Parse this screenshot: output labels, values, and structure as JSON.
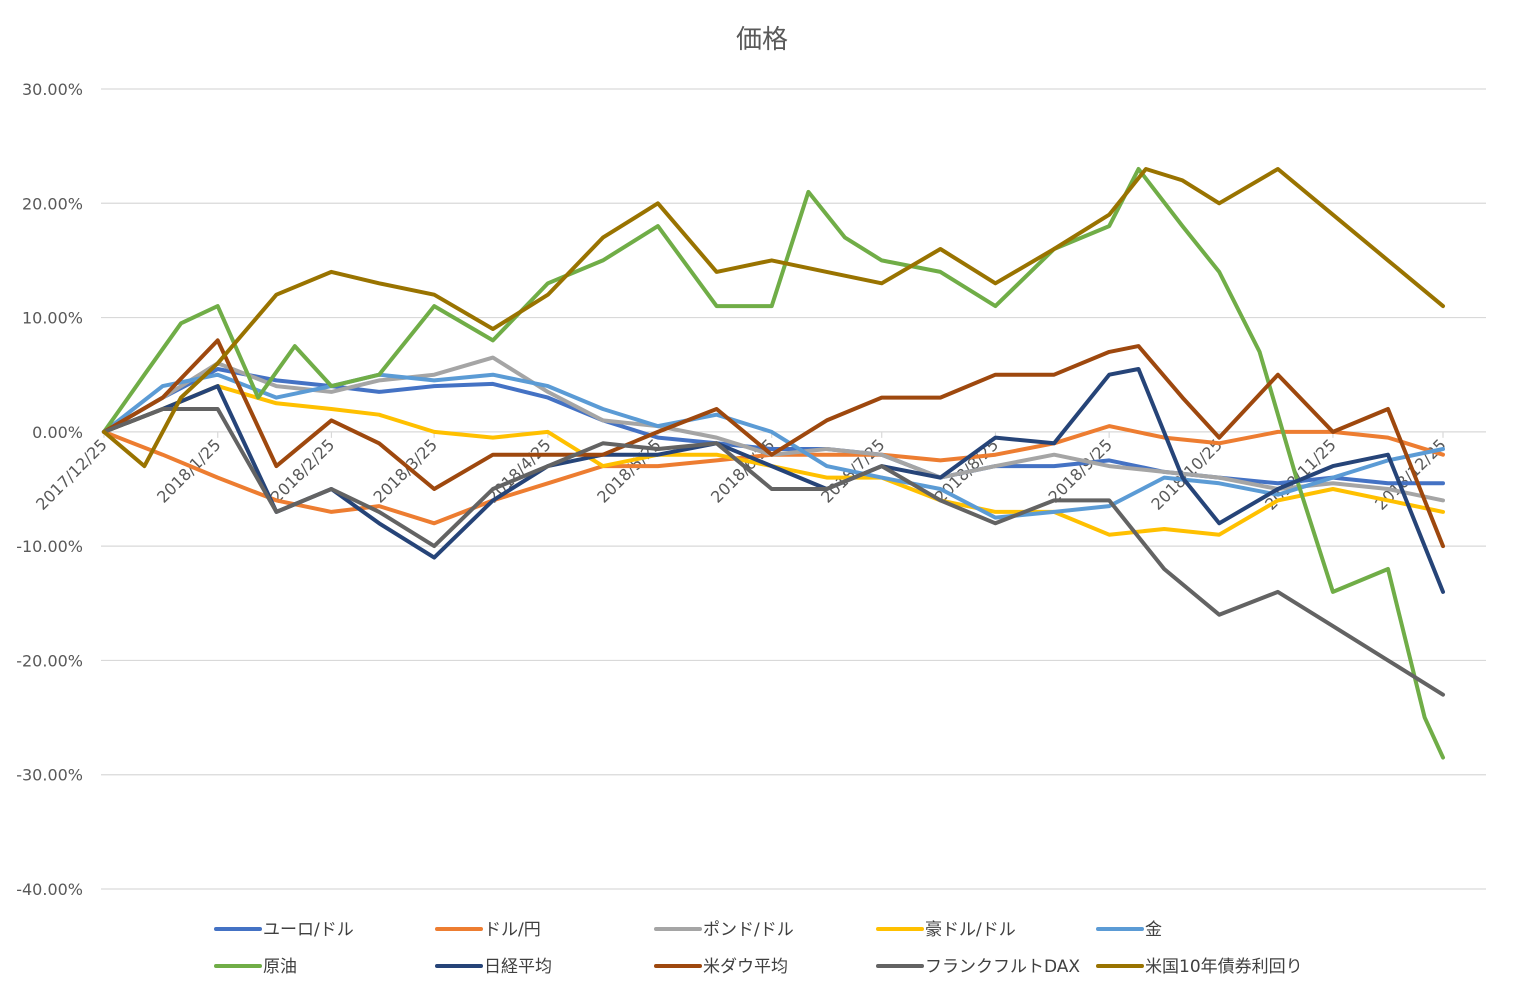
{
  "chart_data": {
    "type": "line",
    "title": "価格",
    "xlabel": "",
    "ylabel": "",
    "ylim": [
      -0.4,
      0.3
    ],
    "y_ticks": [
      0.3,
      0.2,
      0.1,
      0.0,
      -0.1,
      -0.2,
      -0.3,
      -0.4
    ],
    "y_tick_labels": [
      "30.00%",
      "20.00%",
      "10.00%",
      "0.00%",
      "-10.00%",
      "-20.00%",
      "-30.00%",
      "-40.00%"
    ],
    "x_range": [
      "2017/12/25",
      "2018/12/25"
    ],
    "x_ticks": [
      "2017/12/25",
      "2018/1/25",
      "2018/2/25",
      "2018/3/25",
      "2018/4/25",
      "2018/5/25",
      "2018/6/25",
      "2018/7/25",
      "2018/8/25",
      "2018/9/25",
      "2018/10/25",
      "2018/11/25",
      "2018/12/25"
    ],
    "grid": true,
    "legend_position": "bottom",
    "series": [
      {
        "name": "ユーロ/ドル",
        "color": "#4472C4",
        "points": [
          [
            "2017/12/25",
            0.0
          ],
          [
            "2018/1/10",
            0.03
          ],
          [
            "2018/1/25",
            0.055
          ],
          [
            "2018/2/10",
            0.045
          ],
          [
            "2018/2/25",
            0.04
          ],
          [
            "2018/3/10",
            0.035
          ],
          [
            "2018/3/25",
            0.04
          ],
          [
            "2018/4/10",
            0.042
          ],
          [
            "2018/4/25",
            0.03
          ],
          [
            "2018/5/10",
            0.01
          ],
          [
            "2018/5/25",
            -0.005
          ],
          [
            "2018/6/10",
            -0.01
          ],
          [
            "2018/6/25",
            -0.015
          ],
          [
            "2018/7/10",
            -0.015
          ],
          [
            "2018/7/25",
            -0.02
          ],
          [
            "2018/8/10",
            -0.04
          ],
          [
            "2018/8/25",
            -0.03
          ],
          [
            "2018/9/10",
            -0.03
          ],
          [
            "2018/9/25",
            -0.025
          ],
          [
            "2018/10/10",
            -0.035
          ],
          [
            "2018/10/25",
            -0.04
          ],
          [
            "2018/11/10",
            -0.045
          ],
          [
            "2018/11/25",
            -0.04
          ],
          [
            "2018/12/10",
            -0.045
          ],
          [
            "2018/12/25",
            -0.045
          ]
        ]
      },
      {
        "name": "ドル/円",
        "color": "#ED7D31",
        "points": [
          [
            "2017/12/25",
            0.0
          ],
          [
            "2018/1/10",
            -0.02
          ],
          [
            "2018/1/25",
            -0.04
          ],
          [
            "2018/2/10",
            -0.06
          ],
          [
            "2018/2/25",
            -0.07
          ],
          [
            "2018/3/10",
            -0.065
          ],
          [
            "2018/3/25",
            -0.08
          ],
          [
            "2018/4/10",
            -0.06
          ],
          [
            "2018/4/25",
            -0.045
          ],
          [
            "2018/5/10",
            -0.03
          ],
          [
            "2018/5/25",
            -0.03
          ],
          [
            "2018/6/10",
            -0.025
          ],
          [
            "2018/6/25",
            -0.02
          ],
          [
            "2018/7/10",
            -0.02
          ],
          [
            "2018/7/25",
            -0.02
          ],
          [
            "2018/8/10",
            -0.025
          ],
          [
            "2018/8/25",
            -0.02
          ],
          [
            "2018/9/10",
            -0.01
          ],
          [
            "2018/9/25",
            0.005
          ],
          [
            "2018/10/10",
            -0.005
          ],
          [
            "2018/10/25",
            -0.01
          ],
          [
            "2018/11/10",
            0.0
          ],
          [
            "2018/11/25",
            0.0
          ],
          [
            "2018/12/10",
            -0.005
          ],
          [
            "2018/12/25",
            -0.02
          ]
        ]
      },
      {
        "name": "ポンド/ドル",
        "color": "#A5A5A5",
        "points": [
          [
            "2017/12/25",
            0.0
          ],
          [
            "2018/1/10",
            0.03
          ],
          [
            "2018/1/25",
            0.06
          ],
          [
            "2018/2/10",
            0.04
          ],
          [
            "2018/2/25",
            0.035
          ],
          [
            "2018/3/10",
            0.045
          ],
          [
            "2018/3/25",
            0.05
          ],
          [
            "2018/4/10",
            0.065
          ],
          [
            "2018/4/25",
            0.035
          ],
          [
            "2018/5/10",
            0.01
          ],
          [
            "2018/5/25",
            0.005
          ],
          [
            "2018/6/10",
            -0.005
          ],
          [
            "2018/6/25",
            -0.02
          ],
          [
            "2018/7/10",
            -0.015
          ],
          [
            "2018/7/25",
            -0.02
          ],
          [
            "2018/8/10",
            -0.04
          ],
          [
            "2018/8/25",
            -0.03
          ],
          [
            "2018/9/10",
            -0.02
          ],
          [
            "2018/9/25",
            -0.03
          ],
          [
            "2018/10/10",
            -0.035
          ],
          [
            "2018/10/25",
            -0.04
          ],
          [
            "2018/11/10",
            -0.05
          ],
          [
            "2018/11/25",
            -0.045
          ],
          [
            "2018/12/10",
            -0.05
          ],
          [
            "2018/12/25",
            -0.06
          ]
        ]
      },
      {
        "name": "豪ドル/ドル",
        "color": "#FFC000",
        "points": [
          [
            "2017/12/25",
            0.0
          ],
          [
            "2018/1/10",
            0.02
          ],
          [
            "2018/1/25",
            0.04
          ],
          [
            "2018/2/10",
            0.025
          ],
          [
            "2018/2/25",
            0.02
          ],
          [
            "2018/3/10",
            0.015
          ],
          [
            "2018/3/25",
            0.0
          ],
          [
            "2018/4/10",
            -0.005
          ],
          [
            "2018/4/25",
            0.0
          ],
          [
            "2018/5/10",
            -0.03
          ],
          [
            "2018/5/25",
            -0.02
          ],
          [
            "2018/6/10",
            -0.02
          ],
          [
            "2018/6/25",
            -0.03
          ],
          [
            "2018/7/10",
            -0.04
          ],
          [
            "2018/7/25",
            -0.04
          ],
          [
            "2018/8/10",
            -0.06
          ],
          [
            "2018/8/25",
            -0.07
          ],
          [
            "2018/9/10",
            -0.07
          ],
          [
            "2018/9/25",
            -0.09
          ],
          [
            "2018/10/10",
            -0.085
          ],
          [
            "2018/10/25",
            -0.09
          ],
          [
            "2018/11/10",
            -0.06
          ],
          [
            "2018/11/25",
            -0.05
          ],
          [
            "2018/12/10",
            -0.06
          ],
          [
            "2018/12/25",
            -0.07
          ]
        ]
      },
      {
        "name": "金",
        "color": "#5B9BD5",
        "points": [
          [
            "2017/12/25",
            0.0
          ],
          [
            "2018/1/10",
            0.04
          ],
          [
            "2018/1/25",
            0.05
          ],
          [
            "2018/2/10",
            0.03
          ],
          [
            "2018/2/25",
            0.04
          ],
          [
            "2018/3/10",
            0.05
          ],
          [
            "2018/3/25",
            0.045
          ],
          [
            "2018/4/10",
            0.05
          ],
          [
            "2018/4/25",
            0.04
          ],
          [
            "2018/5/10",
            0.02
          ],
          [
            "2018/5/25",
            0.005
          ],
          [
            "2018/6/10",
            0.015
          ],
          [
            "2018/6/25",
            0.0
          ],
          [
            "2018/7/10",
            -0.03
          ],
          [
            "2018/7/25",
            -0.04
          ],
          [
            "2018/8/10",
            -0.05
          ],
          [
            "2018/8/25",
            -0.075
          ],
          [
            "2018/9/10",
            -0.07
          ],
          [
            "2018/9/25",
            -0.065
          ],
          [
            "2018/10/10",
            -0.04
          ],
          [
            "2018/10/25",
            -0.045
          ],
          [
            "2018/11/10",
            -0.055
          ],
          [
            "2018/11/25",
            -0.04
          ],
          [
            "2018/12/10",
            -0.025
          ],
          [
            "2018/12/25",
            -0.015
          ]
        ]
      },
      {
        "name": "原油",
        "color": "#70AD47",
        "points": [
          [
            "2017/12/25",
            0.0
          ],
          [
            "2018/1/5",
            0.05
          ],
          [
            "2018/1/15",
            0.095
          ],
          [
            "2018/1/25",
            0.11
          ],
          [
            "2018/2/5",
            0.03
          ],
          [
            "2018/2/15",
            0.075
          ],
          [
            "2018/2/25",
            0.04
          ],
          [
            "2018/3/10",
            0.05
          ],
          [
            "2018/3/25",
            0.11
          ],
          [
            "2018/4/10",
            0.08
          ],
          [
            "2018/4/25",
            0.13
          ],
          [
            "2018/5/10",
            0.15
          ],
          [
            "2018/5/25",
            0.18
          ],
          [
            "2018/6/10",
            0.11
          ],
          [
            "2018/6/25",
            0.11
          ],
          [
            "2018/7/5",
            0.21
          ],
          [
            "2018/7/15",
            0.17
          ],
          [
            "2018/7/25",
            0.15
          ],
          [
            "2018/8/10",
            0.14
          ],
          [
            "2018/8/25",
            0.11
          ],
          [
            "2018/9/10",
            0.16
          ],
          [
            "2018/9/25",
            0.18
          ],
          [
            "2018/10/3",
            0.23
          ],
          [
            "2018/10/15",
            0.18
          ],
          [
            "2018/10/25",
            0.14
          ],
          [
            "2018/11/5",
            0.07
          ],
          [
            "2018/11/15",
            -0.04
          ],
          [
            "2018/11/25",
            -0.14
          ],
          [
            "2018/12/10",
            -0.12
          ],
          [
            "2018/12/20",
            -0.25
          ],
          [
            "2018/12/25",
            -0.285
          ]
        ]
      },
      {
        "name": "日経平均",
        "color": "#264478",
        "points": [
          [
            "2017/12/25",
            0.0
          ],
          [
            "2018/1/10",
            0.02
          ],
          [
            "2018/1/25",
            0.04
          ],
          [
            "2018/2/10",
            -0.07
          ],
          [
            "2018/2/25",
            -0.05
          ],
          [
            "2018/3/10",
            -0.08
          ],
          [
            "2018/3/25",
            -0.11
          ],
          [
            "2018/4/10",
            -0.06
          ],
          [
            "2018/4/25",
            -0.03
          ],
          [
            "2018/5/10",
            -0.02
          ],
          [
            "2018/5/25",
            -0.02
          ],
          [
            "2018/6/10",
            -0.01
          ],
          [
            "2018/6/25",
            -0.03
          ],
          [
            "2018/7/10",
            -0.05
          ],
          [
            "2018/7/25",
            -0.03
          ],
          [
            "2018/8/10",
            -0.04
          ],
          [
            "2018/8/25",
            -0.005
          ],
          [
            "2018/9/10",
            -0.01
          ],
          [
            "2018/9/25",
            0.05
          ],
          [
            "2018/10/3",
            0.055
          ],
          [
            "2018/10/15",
            -0.04
          ],
          [
            "2018/10/25",
            -0.08
          ],
          [
            "2018/11/10",
            -0.05
          ],
          [
            "2018/11/25",
            -0.03
          ],
          [
            "2018/12/10",
            -0.02
          ],
          [
            "2018/12/25",
            -0.14
          ]
        ]
      },
      {
        "name": "米ダウ平均",
        "color": "#9E480E",
        "points": [
          [
            "2017/12/25",
            0.0
          ],
          [
            "2018/1/10",
            0.03
          ],
          [
            "2018/1/25",
            0.08
          ],
          [
            "2018/2/10",
            -0.03
          ],
          [
            "2018/2/25",
            0.01
          ],
          [
            "2018/3/10",
            -0.01
          ],
          [
            "2018/3/25",
            -0.05
          ],
          [
            "2018/4/10",
            -0.02
          ],
          [
            "2018/4/25",
            -0.02
          ],
          [
            "2018/5/10",
            -0.02
          ],
          [
            "2018/5/25",
            0.0
          ],
          [
            "2018/6/10",
            0.02
          ],
          [
            "2018/6/25",
            -0.02
          ],
          [
            "2018/7/10",
            0.01
          ],
          [
            "2018/7/25",
            0.03
          ],
          [
            "2018/8/10",
            0.03
          ],
          [
            "2018/8/25",
            0.05
          ],
          [
            "2018/9/10",
            0.05
          ],
          [
            "2018/9/25",
            0.07
          ],
          [
            "2018/10/3",
            0.075
          ],
          [
            "2018/10/15",
            0.03
          ],
          [
            "2018/10/25",
            -0.005
          ],
          [
            "2018/11/10",
            0.05
          ],
          [
            "2018/11/25",
            0.0
          ],
          [
            "2018/12/10",
            0.02
          ],
          [
            "2018/12/25",
            -0.1
          ]
        ]
      },
      {
        "name": "フランクフルトDAX",
        "color": "#636363",
        "points": [
          [
            "2017/12/25",
            0.0
          ],
          [
            "2018/1/10",
            0.02
          ],
          [
            "2018/1/25",
            0.02
          ],
          [
            "2018/2/10",
            -0.07
          ],
          [
            "2018/2/25",
            -0.05
          ],
          [
            "2018/3/10",
            -0.07
          ],
          [
            "2018/3/25",
            -0.1
          ],
          [
            "2018/4/10",
            -0.05
          ],
          [
            "2018/4/25",
            -0.03
          ],
          [
            "2018/5/10",
            -0.01
          ],
          [
            "2018/5/25",
            -0.015
          ],
          [
            "2018/6/10",
            -0.01
          ],
          [
            "2018/6/25",
            -0.05
          ],
          [
            "2018/7/10",
            -0.05
          ],
          [
            "2018/7/25",
            -0.03
          ],
          [
            "2018/8/10",
            -0.06
          ],
          [
            "2018/8/25",
            -0.08
          ],
          [
            "2018/9/10",
            -0.06
          ],
          [
            "2018/9/25",
            -0.06
          ],
          [
            "2018/10/10",
            -0.12
          ],
          [
            "2018/10/25",
            -0.16
          ],
          [
            "2018/11/10",
            -0.14
          ],
          [
            "2018/11/25",
            -0.17
          ],
          [
            "2018/12/10",
            -0.2
          ],
          [
            "2018/12/25",
            -0.23
          ]
        ]
      },
      {
        "name": "米国10年債券利回り",
        "color": "#997300",
        "points": [
          [
            "2017/12/25",
            0.0
          ],
          [
            "2018/1/5",
            -0.03
          ],
          [
            "2018/1/15",
            0.03
          ],
          [
            "2018/1/25",
            0.06
          ],
          [
            "2018/2/10",
            0.12
          ],
          [
            "2018/2/25",
            0.14
          ],
          [
            "2018/3/10",
            0.13
          ],
          [
            "2018/3/25",
            0.12
          ],
          [
            "2018/4/10",
            0.09
          ],
          [
            "2018/4/25",
            0.12
          ],
          [
            "2018/5/10",
            0.17
          ],
          [
            "2018/5/25",
            0.2
          ],
          [
            "2018/6/10",
            0.14
          ],
          [
            "2018/6/25",
            0.15
          ],
          [
            "2018/7/10",
            0.14
          ],
          [
            "2018/7/25",
            0.13
          ],
          [
            "2018/8/10",
            0.16
          ],
          [
            "2018/8/25",
            0.13
          ],
          [
            "2018/9/10",
            0.16
          ],
          [
            "2018/9/25",
            0.19
          ],
          [
            "2018/10/5",
            0.23
          ],
          [
            "2018/10/15",
            0.22
          ],
          [
            "2018/10/25",
            0.2
          ],
          [
            "2018/11/10",
            0.23
          ],
          [
            "2018/11/25",
            0.19
          ],
          [
            "2018/12/10",
            0.15
          ],
          [
            "2018/12/25",
            0.11
          ]
        ]
      }
    ]
  }
}
